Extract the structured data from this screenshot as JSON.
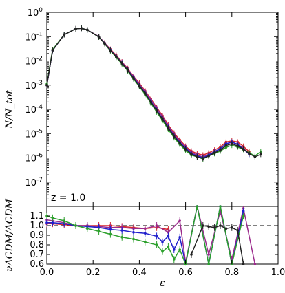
{
  "chart_data": [
    {
      "type": "line",
      "panel": "top",
      "yscale": "log",
      "xlim": [
        0.0,
        1.0
      ],
      "ylim": [
        1e-08,
        1.0
      ],
      "ylabel": "N/N_tot",
      "xlabel": "",
      "annotation": "z = 1.0",
      "grid": false,
      "x_ticks": [
        0.0,
        0.2,
        0.4,
        0.6,
        0.8,
        1.0
      ],
      "y_ticks": [
        {
          "value": 1.0,
          "base": "10",
          "exp": "0"
        },
        {
          "value": 0.1,
          "base": "10",
          "exp": "-1"
        },
        {
          "value": 0.01,
          "base": "10",
          "exp": "-2"
        },
        {
          "value": 0.001,
          "base": "10",
          "exp": "-3"
        },
        {
          "value": 0.0001,
          "base": "10",
          "exp": "-4"
        },
        {
          "value": 1e-05,
          "base": "10",
          "exp": "-5"
        },
        {
          "value": 1e-06,
          "base": "10",
          "exp": "-6"
        },
        {
          "value": 1e-07,
          "base": "10",
          "exp": "-7"
        }
      ],
      "series": [
        {
          "color": "#d62728",
          "x": [
            0.0,
            0.025,
            0.075,
            0.125,
            0.15,
            0.175,
            0.225,
            0.25,
            0.275,
            0.3,
            0.325,
            0.35,
            0.375,
            0.4,
            0.425,
            0.45,
            0.475,
            0.5,
            0.525,
            0.55,
            0.575,
            0.6,
            0.625,
            0.65,
            0.675,
            0.7,
            0.725,
            0.75,
            0.775,
            0.8,
            0.825,
            0.85,
            0.875
          ],
          "y": [
            0.001,
            0.028,
            0.12,
            0.21,
            0.22,
            0.19,
            0.1,
            0.055,
            0.03,
            0.017,
            0.009,
            0.0048,
            0.0023,
            0.0012,
            0.00058,
            0.00027,
            0.00012,
            5.5e-05,
            2.3e-05,
            1.05e-05,
            5.5e-06,
            3e-06,
            1.9e-06,
            1.5e-06,
            1.3e-06,
            1.6e-06,
            2.1e-06,
            2.8e-06,
            4.5e-06,
            5e-06,
            4.5e-06,
            3e-06,
            1.8e-06
          ]
        },
        {
          "color": "#9b2a8c",
          "x": [
            0.0,
            0.025,
            0.075,
            0.125,
            0.15,
            0.175,
            0.225,
            0.25,
            0.275,
            0.3,
            0.325,
            0.35,
            0.375,
            0.4,
            0.425,
            0.45,
            0.475,
            0.5,
            0.525,
            0.55,
            0.575,
            0.6,
            0.625,
            0.65,
            0.675,
            0.7,
            0.725,
            0.75,
            0.775,
            0.8,
            0.825,
            0.85,
            0.875
          ],
          "y": [
            0.001,
            0.028,
            0.12,
            0.21,
            0.22,
            0.19,
            0.1,
            0.054,
            0.029,
            0.016,
            0.0088,
            0.0046,
            0.0022,
            0.0011,
            0.00055,
            0.00025,
            0.00011,
            5e-05,
            2.1e-05,
            9.5e-06,
            5e-06,
            2.8e-06,
            1.7e-06,
            1.3e-06,
            1.1e-06,
            1.4e-06,
            1.8e-06,
            2.4e-06,
            3.8e-06,
            4.3e-06,
            3.7e-06,
            2.5e-06,
            1.5e-06
          ]
        },
        {
          "color": "#1f1fcc",
          "x": [
            0.0,
            0.025,
            0.075,
            0.125,
            0.15,
            0.175,
            0.225,
            0.25,
            0.275,
            0.3,
            0.325,
            0.35,
            0.375,
            0.4,
            0.425,
            0.45,
            0.475,
            0.5,
            0.525,
            0.55,
            0.575,
            0.6,
            0.625,
            0.65,
            0.675,
            0.7,
            0.725,
            0.75,
            0.775,
            0.8,
            0.825,
            0.85,
            0.875
          ],
          "y": [
            0.001,
            0.027,
            0.12,
            0.21,
            0.22,
            0.19,
            0.098,
            0.053,
            0.028,
            0.015,
            0.0082,
            0.0042,
            0.002,
            0.00098,
            0.00047,
            0.00021,
            9.2e-05,
            4.2e-05,
            1.8e-05,
            8.2e-06,
            4.3e-06,
            2.5e-06,
            1.5e-06,
            1.2e-06,
            1e-06,
            1.3e-06,
            1.8e-06,
            2.4e-06,
            3.8e-06,
            4.5e-06,
            3.6e-06,
            2.3e-06,
            1.4e-06
          ]
        },
        {
          "color": "#2ca02c",
          "x": [
            0.0,
            0.025,
            0.075,
            0.125,
            0.15,
            0.175,
            0.225,
            0.25,
            0.275,
            0.3,
            0.325,
            0.35,
            0.375,
            0.4,
            0.425,
            0.45,
            0.475,
            0.5,
            0.525,
            0.55,
            0.575,
            0.6,
            0.625,
            0.65,
            0.675,
            0.7,
            0.725,
            0.75,
            0.775,
            0.8,
            0.825,
            0.85,
            0.875,
            0.9,
            0.925
          ],
          "y": [
            0.0011,
            0.029,
            0.12,
            0.21,
            0.22,
            0.19,
            0.096,
            0.051,
            0.026,
            0.014,
            0.0075,
            0.0038,
            0.0018,
            0.00087,
            0.00041,
            0.00018,
            7.8e-05,
            3.5e-05,
            1.5e-05,
            6.8e-06,
            3.6e-06,
            2e-06,
            1.3e-06,
            1.1e-06,
            9e-07,
            1.2e-06,
            1.5e-06,
            1.9e-06,
            2.7e-06,
            3.3e-06,
            2.8e-06,
            2.2e-06,
            1.6e-06,
            1.2e-06,
            1.8e-06
          ]
        },
        {
          "color": "#222222",
          "x": [
            0.0,
            0.025,
            0.075,
            0.125,
            0.15,
            0.175,
            0.225,
            0.25,
            0.275,
            0.3,
            0.325,
            0.35,
            0.375,
            0.4,
            0.425,
            0.45,
            0.475,
            0.5,
            0.525,
            0.55,
            0.575,
            0.6,
            0.625,
            0.65,
            0.675,
            0.7,
            0.725,
            0.75,
            0.775,
            0.8,
            0.825,
            0.85,
            0.875,
            0.9,
            0.925
          ],
          "y": [
            0.001,
            0.027,
            0.12,
            0.21,
            0.22,
            0.19,
            0.097,
            0.052,
            0.027,
            0.015,
            0.008,
            0.0041,
            0.0019,
            0.00094,
            0.00045,
            0.0002,
            8.8e-05,
            4e-05,
            1.7e-05,
            7.8e-06,
            4e-06,
            2.3e-06,
            1.4e-06,
            1.1e-06,
            9.5e-07,
            1.2e-06,
            1.6e-06,
            2.1e-06,
            3.2e-06,
            3.8e-06,
            3.1e-06,
            2.3e-06,
            1.5e-06,
            1.1e-06,
            1.4e-06
          ]
        }
      ]
    },
    {
      "type": "line",
      "panel": "bottom",
      "xlim": [
        0.0,
        1.0
      ],
      "ylim": [
        0.6,
        1.2
      ],
      "xlabel": "ε",
      "ylabel": "νΛCDM/ΛCDM",
      "reference_line": 1.0,
      "grid": false,
      "x_ticks": [
        0.0,
        0.2,
        0.4,
        0.6,
        0.8,
        1.0
      ],
      "x_tick_labels": [
        "0.0",
        "0.2",
        "0.4",
        "0.6",
        "0.8",
        "1.0"
      ],
      "y_ticks": [
        0.6,
        0.7,
        0.8,
        0.9,
        1.0,
        1.1
      ],
      "y_tick_labels": [
        "0.6",
        "0.7",
        "0.8",
        "0.9",
        "1.0",
        "1.1"
      ],
      "series": [
        {
          "color": "#d62728",
          "x": [
            0.0,
            0.025,
            0.075,
            0.125,
            0.175,
            0.225,
            0.275,
            0.325,
            0.375,
            0.425,
            0.475,
            0.525
          ],
          "y": [
            1.02,
            1.02,
            1.01,
            1.0,
            1.0,
            1.0,
            1.0,
            0.99,
            0.98,
            0.97,
            0.98,
            0.96
          ]
        },
        {
          "color": "#9b2a8c",
          "x": [
            0.0,
            0.025,
            0.075,
            0.125,
            0.175,
            0.225,
            0.275,
            0.325,
            0.375,
            0.425,
            0.475,
            0.525,
            0.575,
            0.6,
            0.65,
            0.7,
            0.75,
            0.8,
            0.85,
            0.9
          ],
          "y": [
            1.06,
            1.05,
            1.03,
            1.0,
            1.0,
            0.99,
            0.98,
            0.98,
            0.97,
            0.97,
            1.0,
            0.93,
            1.05,
            0.62,
            1.2,
            0.7,
            1.15,
            0.65,
            1.18,
            0.6
          ]
        },
        {
          "color": "#1f1fcc",
          "x": [
            0.0,
            0.025,
            0.075,
            0.125,
            0.175,
            0.225,
            0.275,
            0.325,
            0.375,
            0.425,
            0.475,
            0.5,
            0.525,
            0.55,
            0.575,
            0.6,
            0.65,
            0.7,
            0.75,
            0.8,
            0.85
          ],
          "y": [
            1.03,
            1.03,
            1.02,
            1.0,
            0.99,
            0.98,
            0.96,
            0.95,
            0.93,
            0.92,
            0.89,
            0.83,
            0.89,
            0.75,
            0.88,
            0.6,
            1.2,
            0.6,
            1.2,
            0.6,
            1.15
          ]
        },
        {
          "color": "#2ca02c",
          "x": [
            0.0,
            0.025,
            0.075,
            0.125,
            0.175,
            0.225,
            0.275,
            0.325,
            0.375,
            0.425,
            0.475,
            0.5,
            0.525,
            0.55,
            0.575,
            0.6,
            0.65,
            0.7,
            0.75,
            0.8,
            0.85
          ],
          "y": [
            1.1,
            1.08,
            1.05,
            1.0,
            0.97,
            0.94,
            0.91,
            0.88,
            0.86,
            0.83,
            0.8,
            0.73,
            0.78,
            0.65,
            0.75,
            0.6,
            1.2,
            0.6,
            1.2,
            0.6,
            1.1
          ]
        },
        {
          "color": "#222222",
          "x": [
            0.625,
            0.675,
            0.7,
            0.725,
            0.75,
            0.775,
            0.8,
            0.825,
            0.85
          ],
          "y": [
            0.7,
            1.0,
            0.99,
            0.98,
            1.0,
            0.97,
            0.98,
            0.95,
            0.6
          ]
        }
      ]
    }
  ]
}
